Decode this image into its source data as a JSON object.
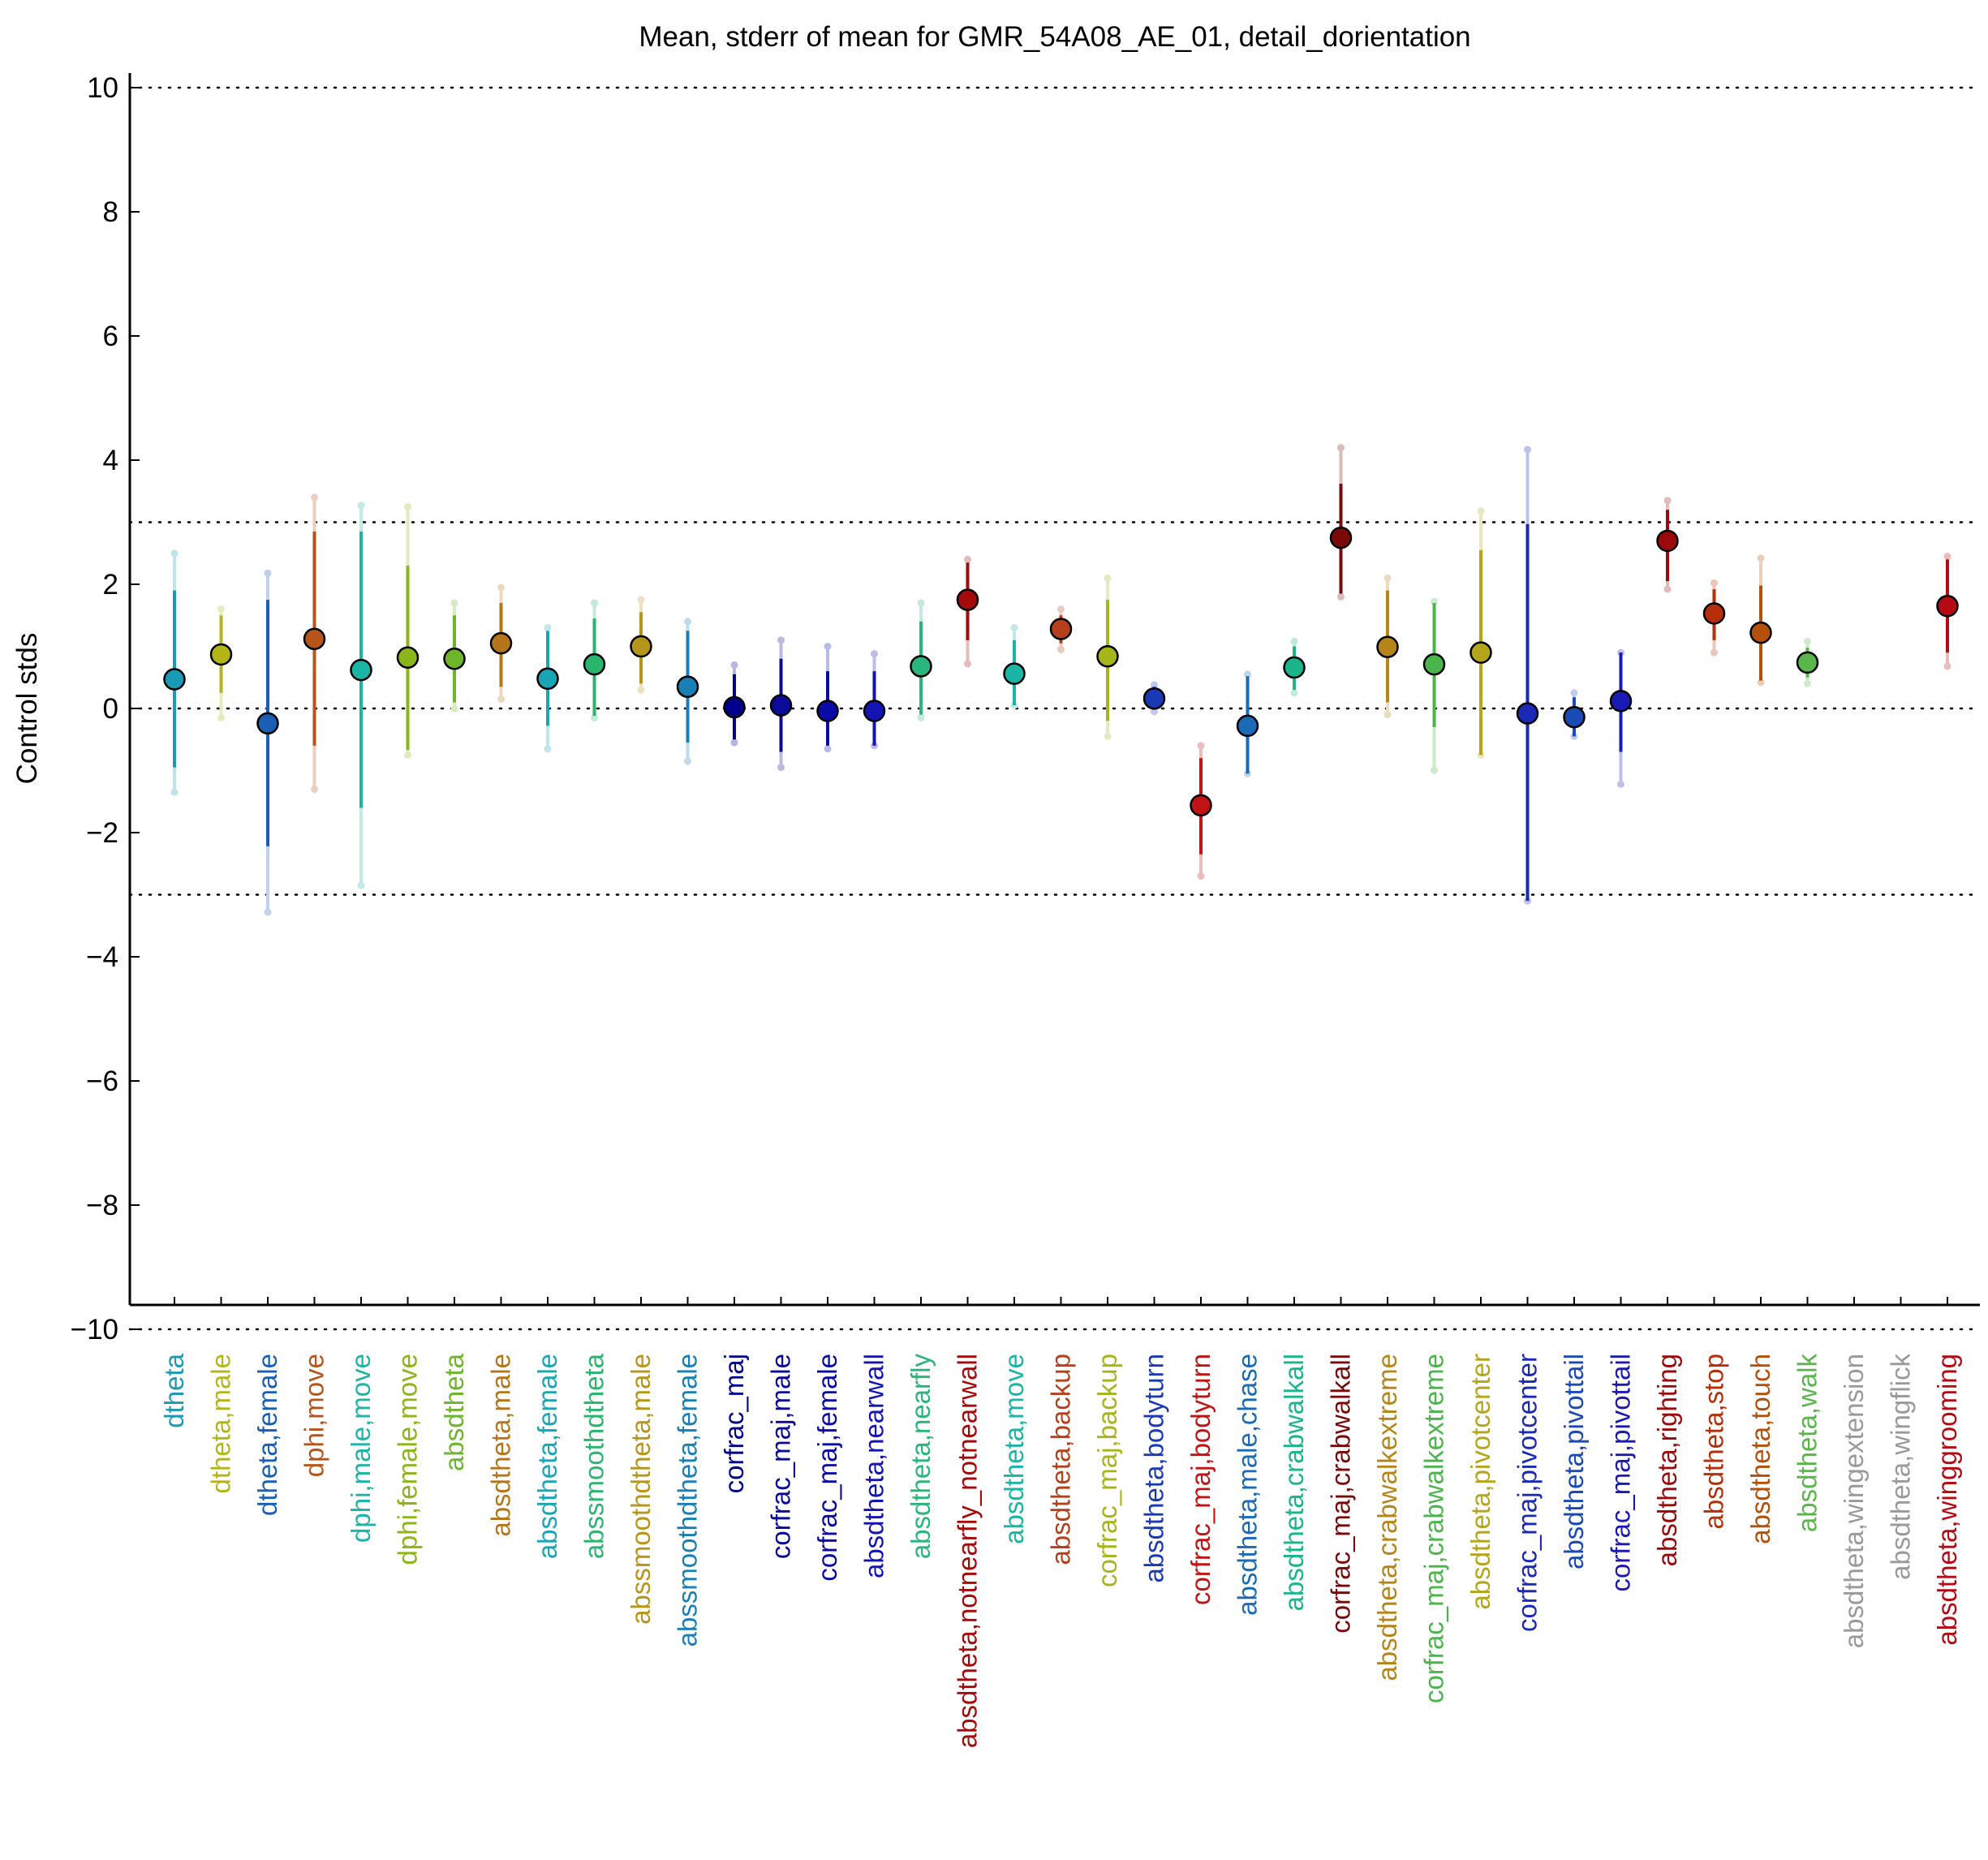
{
  "chart_data": {
    "type": "scatter",
    "title": "Mean, stderr of mean for GMR_54A08_AE_01, detail_dorientation",
    "xlabel": "",
    "ylabel": "Control stds",
    "ylim": [
      -10.2,
      10.2
    ],
    "yticks": [
      -10,
      -8,
      -6,
      -4,
      -2,
      0,
      2,
      4,
      6,
      8,
      10
    ],
    "ytick_labels": [
      "−10",
      "−8",
      "−6",
      "−4",
      "−2",
      "0",
      "2",
      "4",
      "6",
      "8",
      "10"
    ],
    "reference_lines": [
      10,
      3,
      0,
      -3,
      -10
    ],
    "grid": false,
    "legend": "none",
    "categories": [
      "dtheta",
      "dtheta,male",
      "dtheta,female",
      "dphi,move",
      "dphi,male,move",
      "dphi,female,move",
      "absdtheta",
      "absdtheta,male",
      "absdtheta,female",
      "abssmoothdtheta",
      "abssmoothdtheta,male",
      "abssmoothdtheta,female",
      "corfrac_maj",
      "corfrac_maj,male",
      "corfrac_maj,female",
      "absdtheta,nearwall",
      "absdtheta,nearfly",
      "absdtheta,notnearfly_notnearwall",
      "absdtheta,move",
      "absdtheta,backup",
      "corfrac_maj,backup",
      "absdtheta,bodyturn",
      "corfrac_maj,bodyturn",
      "absdtheta,male,chase",
      "absdtheta,crabwalkall",
      "corfrac_maj,crabwalkall",
      "absdtheta,crabwalkextreme",
      "corfrac_maj,crabwalkextreme",
      "absdtheta,pivotcenter",
      "corfrac_maj,pivotcenter",
      "absdtheta,pivottail",
      "corfrac_maj,pivottail",
      "absdtheta,righting",
      "absdtheta,stop",
      "absdtheta,touch",
      "absdtheta,walk",
      "absdtheta,wingextension",
      "absdtheta,wingflick",
      "absdtheta,winggrooming"
    ],
    "colors": [
      "#1a9ab5",
      "#b5b51a",
      "#1a5fb5",
      "#b5551a",
      "#1ab5a5",
      "#8cb51a",
      "#6db52a",
      "#b5751a",
      "#1aa5b5",
      "#2ab56d",
      "#b5951a",
      "#1a7fb5",
      "#00008b",
      "#0a0a9b",
      "#0a0aa5",
      "#1414b5",
      "#2ab57a",
      "#a50a0a",
      "#1ab5a5",
      "#b5401a",
      "#a5b51a",
      "#1a3ab5",
      "#c01414",
      "#1a6ab5",
      "#1ab58a",
      "#7a0a0a",
      "#b5851a",
      "#4ab54a",
      "#b5a51a",
      "#1a2ab5",
      "#1a4ab5",
      "#1a1ab5",
      "#9a0a0a",
      "#b5300a",
      "#b5500a",
      "#5ab54a",
      "#9a9a9a",
      "#9a9a9a",
      "#b50a14"
    ],
    "mean": [
      0.47,
      0.87,
      -0.24,
      1.12,
      0.62,
      0.82,
      0.8,
      1.05,
      0.48,
      0.71,
      1.0,
      0.35,
      0.02,
      0.05,
      -0.04,
      -0.04,
      0.68,
      1.75,
      0.56,
      1.28,
      0.84,
      0.16,
      -1.56,
      -0.28,
      0.66,
      2.75,
      0.99,
      0.71,
      0.9,
      -0.08,
      -0.14,
      0.12,
      2.7,
      1.53,
      1.22,
      0.74,
      null,
      null,
      1.65
    ],
    "stderr_low": [
      -0.95,
      0.25,
      -2.22,
      -0.6,
      -1.6,
      -0.67,
      0.1,
      0.35,
      -0.28,
      -0.12,
      0.4,
      -0.55,
      -0.5,
      -0.7,
      -0.6,
      -0.6,
      -0.1,
      1.1,
      0.05,
      1.05,
      -0.2,
      -0.02,
      -2.35,
      -1.05,
      0.3,
      1.85,
      0.1,
      -0.3,
      -0.75,
      -3.1,
      -0.45,
      -0.7,
      2.05,
      1.1,
      0.45,
      0.5,
      null,
      null,
      0.9
    ],
    "stderr_high": [
      1.9,
      1.5,
      1.75,
      2.85,
      2.85,
      2.3,
      1.5,
      1.7,
      1.25,
      1.45,
      1.55,
      1.25,
      0.55,
      0.8,
      0.6,
      0.6,
      1.4,
      2.35,
      1.1,
      1.5,
      1.75,
      0.35,
      -0.8,
      0.52,
      1.0,
      3.62,
      1.9,
      1.7,
      2.55,
      2.97,
      0.18,
      0.9,
      3.2,
      1.92,
      1.98,
      0.98,
      null,
      null,
      2.4
    ],
    "range_low": [
      -1.35,
      -0.15,
      -3.28,
      -1.3,
      -2.85,
      -0.75,
      0.0,
      0.15,
      -0.65,
      -0.15,
      0.3,
      -0.85,
      -0.55,
      -0.95,
      -0.65,
      -0.6,
      -0.15,
      0.72,
      0.05,
      0.95,
      -0.45,
      -0.05,
      -2.7,
      -1.05,
      0.25,
      1.8,
      -0.1,
      -1.0,
      -0.75,
      -3.1,
      -0.45,
      -1.22,
      1.92,
      0.9,
      0.42,
      0.4,
      null,
      null,
      0.68
    ],
    "range_high": [
      2.5,
      1.6,
      2.18,
      3.4,
      3.27,
      3.25,
      1.7,
      1.95,
      1.3,
      1.7,
      1.75,
      1.4,
      0.7,
      1.1,
      1.0,
      0.88,
      1.7,
      2.4,
      1.3,
      1.6,
      2.1,
      0.38,
      -0.6,
      0.55,
      1.08,
      4.2,
      2.1,
      1.72,
      3.18,
      4.17,
      0.25,
      0.9,
      3.35,
      2.02,
      2.42,
      1.08,
      null,
      null,
      2.45
    ]
  }
}
